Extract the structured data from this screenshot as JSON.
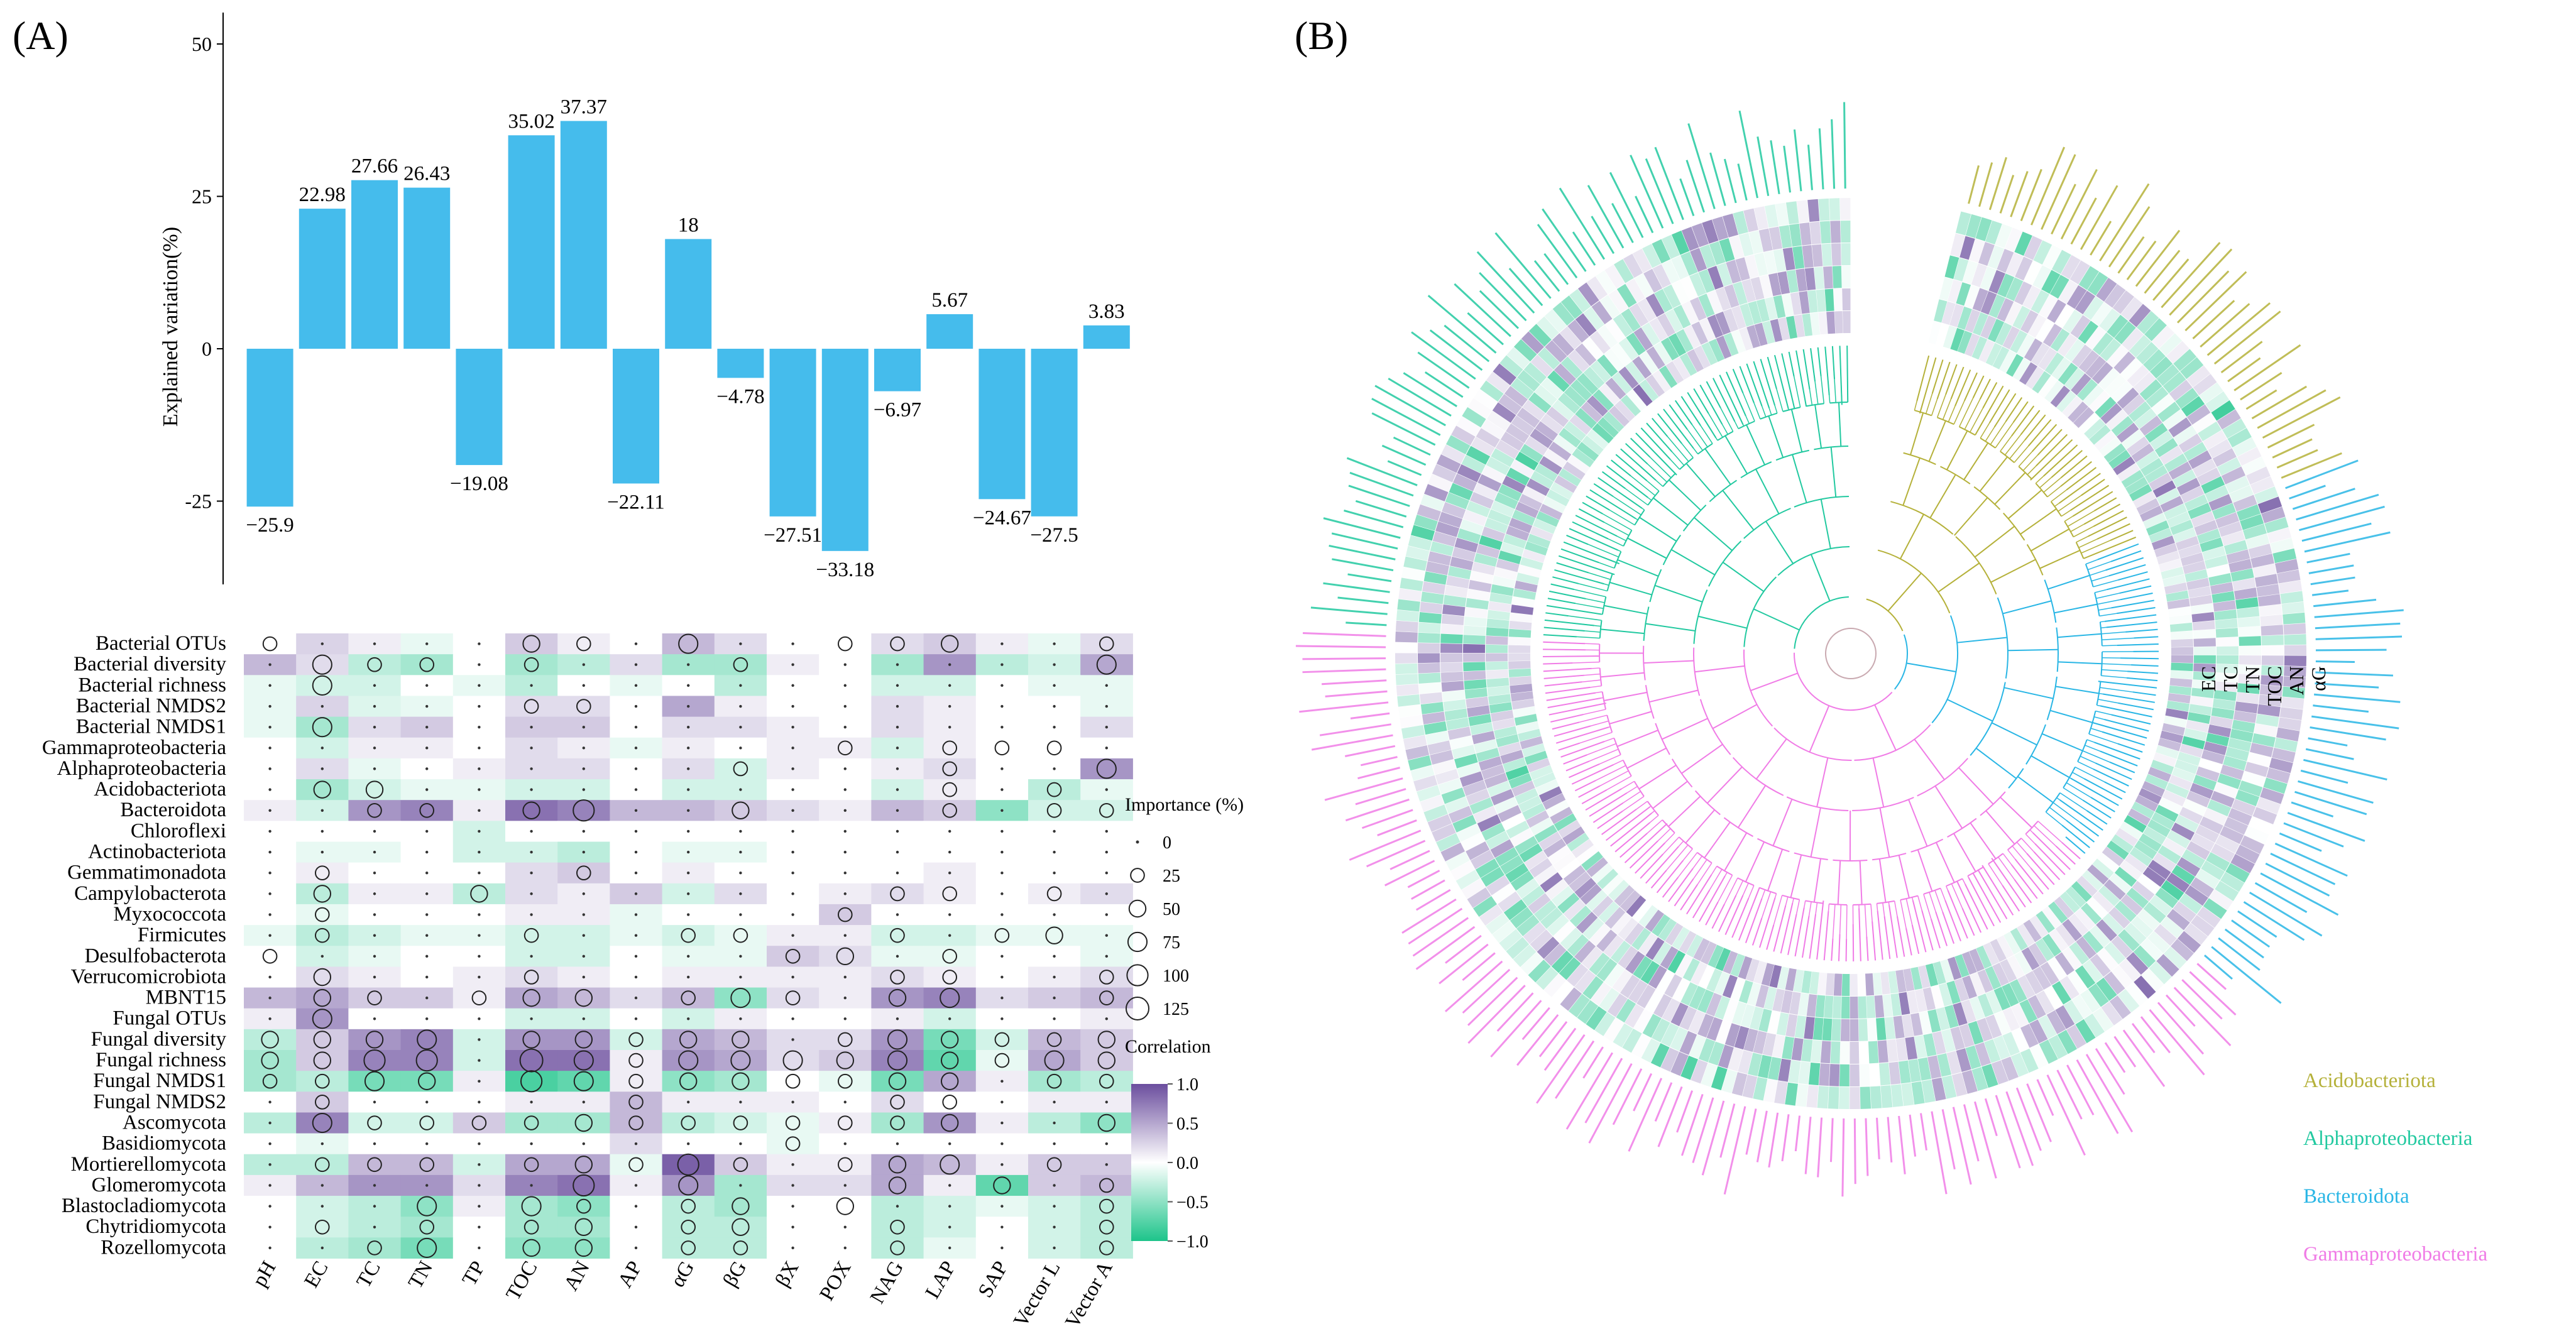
{
  "panel_a": {
    "label": "(A)",
    "bar_chart": {
      "type": "bar",
      "ylabel": "Explained variation(%)",
      "ylim": [
        -38,
        56
      ],
      "yticks": [
        -25,
        0,
        25,
        50
      ],
      "categories": [
        "pH",
        "EC",
        "TC",
        "TN",
        "TP",
        "TOC",
        "AN",
        "AP",
        "αG",
        "βG",
        "βX",
        "POX",
        "NAG",
        "LAP",
        "SAP",
        "Vector L",
        "Vector A"
      ],
      "values": [
        -25.9,
        22.98,
        27.66,
        26.43,
        -19.08,
        35.02,
        37.37,
        -22.11,
        18,
        -4.78,
        -27.51,
        -33.18,
        -6.97,
        5.67,
        -24.67,
        -27.5,
        3.83
      ],
      "value_labels": [
        "−25.9",
        "22.98",
        "27.66",
        "26.43",
        "−19.08",
        "35.02",
        "37.37",
        "−22.11",
        "18",
        "−4.78",
        "−27.51",
        "−33.18",
        "−6.97",
        "5.67",
        "−24.67",
        "−27.5",
        "3.83"
      ],
      "bar_color": "#45BCEC"
    },
    "heatmap": {
      "type": "heatmap",
      "rows": [
        "Bacterial OTUs",
        "Bacterial diversity",
        "Bacterial richness",
        "Bacterial NMDS2",
        "Bacterial NMDS1",
        "Gammaproteobacteria",
        "Alphaproteobacteria",
        "Acidobacteriota",
        "Bacteroidota",
        "Chloroflexi",
        "Actinobacteriota",
        "Gemmatimonadota",
        "Campylobacterota",
        "Myxococcota",
        "Firmicutes",
        "Desulfobacterota",
        "Verrucomicrobiota",
        "MBNT15",
        "Fungal OTUs",
        "Fungal diversity",
        "Fungal richness",
        "Fungal NMDS1",
        "Fungal NMDS2",
        "Ascomycota",
        "Basidiomycota",
        "Mortierellomycota",
        "Glomeromycota",
        "Blastocladiomycota",
        "Chytridiomycota",
        "Rozellomycota"
      ],
      "columns": [
        "pH",
        "EC",
        "TC",
        "TN",
        "TP",
        "TOC",
        "AN",
        "AP",
        "αG",
        "βG",
        "βX",
        "POX",
        "NAG",
        "LAP",
        "SAP",
        "Vector L",
        "Vector A"
      ],
      "colors": {
        "positive": "#6B4E9E",
        "zero": "#FFFFFF",
        "negative": "#1DC48A"
      },
      "correlation": [
        [
          0.0,
          0.25,
          0.1,
          -0.1,
          0.0,
          0.3,
          0.1,
          0.0,
          0.4,
          0.2,
          0.0,
          0.0,
          0.2,
          0.3,
          0.1,
          -0.1,
          0.2
        ],
        [
          0.4,
          0.2,
          -0.3,
          -0.4,
          0.0,
          -0.4,
          -0.3,
          0.2,
          -0.4,
          -0.4,
          0.1,
          0.0,
          -0.4,
          0.6,
          -0.3,
          -0.2,
          0.5
        ],
        [
          -0.1,
          -0.2,
          -0.2,
          0.0,
          -0.1,
          -0.3,
          0.0,
          -0.1,
          0.0,
          -0.3,
          0.0,
          0.0,
          -0.2,
          -0.2,
          0.0,
          -0.1,
          -0.1
        ],
        [
          -0.1,
          0.25,
          -0.15,
          -0.1,
          0.0,
          0.2,
          0.2,
          0.0,
          0.5,
          0.1,
          0.0,
          0.0,
          0.2,
          0.1,
          0.0,
          0.0,
          -0.1
        ],
        [
          -0.1,
          -0.4,
          0.2,
          0.3,
          0.0,
          0.3,
          0.3,
          0.0,
          0.2,
          0.2,
          0.1,
          0.0,
          0.2,
          0.1,
          0.0,
          0.0,
          0.2
        ],
        [
          0.0,
          -0.2,
          0.1,
          0.1,
          0.0,
          0.2,
          0.1,
          -0.1,
          0.1,
          0.0,
          0.1,
          0.1,
          -0.2,
          0.1,
          0.0,
          0.0,
          0.0
        ],
        [
          0.0,
          0.2,
          -0.1,
          0.0,
          0.1,
          0.2,
          0.2,
          0.0,
          0.2,
          -0.2,
          0.1,
          0.0,
          0.1,
          0.2,
          0.0,
          0.0,
          0.6
        ],
        [
          0.0,
          -0.4,
          -0.2,
          -0.1,
          -0.1,
          -0.2,
          -0.2,
          0.0,
          -0.2,
          -0.2,
          0.0,
          0.0,
          -0.2,
          0.1,
          0.0,
          -0.3,
          -0.1
        ],
        [
          0.1,
          -0.2,
          0.6,
          0.7,
          0.1,
          0.8,
          0.7,
          0.4,
          0.4,
          0.3,
          0.2,
          0.1,
          0.4,
          0.3,
          -0.5,
          -0.2,
          -0.2
        ],
        [
          0.0,
          0.0,
          0.0,
          0.0,
          -0.2,
          0.0,
          0.0,
          0.0,
          0.0,
          0.0,
          0.0,
          0.0,
          0.0,
          0.0,
          0.0,
          0.0,
          0.0
        ],
        [
          0.0,
          -0.1,
          -0.1,
          0.0,
          -0.2,
          -0.2,
          -0.3,
          0.0,
          -0.1,
          -0.1,
          0.0,
          0.0,
          0.0,
          0.0,
          0.0,
          0.0,
          0.0
        ],
        [
          0.0,
          0.1,
          0.0,
          0.0,
          0.0,
          0.2,
          0.3,
          0.0,
          0.1,
          0.0,
          0.0,
          0.0,
          0.0,
          0.1,
          0.0,
          0.0,
          0.0
        ],
        [
          0.0,
          -0.3,
          0.1,
          0.1,
          -0.3,
          0.2,
          0.1,
          0.3,
          -0.2,
          0.2,
          0.0,
          0.1,
          0.2,
          0.1,
          0.0,
          0.1,
          0.2
        ],
        [
          0.0,
          -0.1,
          0.0,
          0.0,
          0.0,
          0.1,
          0.1,
          -0.1,
          0.0,
          0.0,
          0.0,
          0.3,
          0.0,
          0.0,
          0.0,
          0.0,
          0.0
        ],
        [
          -0.1,
          -0.3,
          -0.2,
          -0.1,
          -0.1,
          -0.2,
          -0.2,
          -0.1,
          -0.2,
          -0.1,
          0.1,
          0.1,
          -0.2,
          -0.2,
          -0.1,
          -0.1,
          -0.1
        ],
        [
          0.0,
          -0.2,
          -0.1,
          0.0,
          0.0,
          -0.2,
          -0.2,
          0.0,
          -0.1,
          -0.1,
          0.3,
          0.2,
          -0.1,
          -0.1,
          0.0,
          0.0,
          -0.1
        ],
        [
          0.0,
          0.2,
          0.1,
          0.0,
          0.1,
          0.2,
          0.1,
          0.0,
          0.1,
          0.1,
          0.1,
          0.1,
          0.2,
          0.1,
          0.0,
          0.1,
          0.2
        ],
        [
          0.4,
          0.5,
          0.3,
          0.3,
          0.1,
          0.5,
          0.4,
          0.2,
          0.4,
          -0.5,
          0.2,
          0.1,
          0.6,
          0.7,
          0.2,
          0.3,
          0.4
        ],
        [
          0.1,
          0.6,
          0.0,
          0.0,
          0.0,
          -0.2,
          -0.2,
          0.0,
          -0.2,
          0.1,
          0.0,
          0.0,
          0.1,
          -0.2,
          0.0,
          0.0,
          0.1
        ],
        [
          -0.3,
          0.3,
          0.6,
          0.7,
          -0.2,
          0.6,
          0.6,
          -0.2,
          0.5,
          0.4,
          0.2,
          0.2,
          0.6,
          -0.6,
          -0.2,
          0.4,
          0.3
        ],
        [
          -0.4,
          0.3,
          0.7,
          0.7,
          -0.2,
          0.8,
          0.8,
          0.1,
          0.6,
          0.5,
          0.2,
          0.3,
          0.7,
          -0.7,
          -0.1,
          0.5,
          0.3
        ],
        [
          -0.4,
          -0.3,
          -0.6,
          -0.6,
          0.1,
          -0.8,
          -0.7,
          0.1,
          -0.5,
          -0.4,
          0.0,
          -0.1,
          -0.6,
          0.5,
          0.1,
          -0.4,
          -0.3
        ],
        [
          0.0,
          0.3,
          0.0,
          0.0,
          0.0,
          0.1,
          0.1,
          0.4,
          0.1,
          0.1,
          0.1,
          0.0,
          0.2,
          0.0,
          0.0,
          0.1,
          0.1
        ],
        [
          -0.3,
          0.7,
          -0.2,
          -0.2,
          0.3,
          -0.4,
          -0.4,
          0.4,
          -0.3,
          -0.2,
          -0.1,
          0.1,
          -0.4,
          0.6,
          0.1,
          -0.3,
          -0.5
        ],
        [
          0.0,
          -0.1,
          0.0,
          0.0,
          0.0,
          0.0,
          0.0,
          0.2,
          0.0,
          0.0,
          -0.1,
          0.0,
          0.0,
          0.0,
          0.0,
          0.0,
          0.0
        ],
        [
          -0.3,
          -0.3,
          0.4,
          0.4,
          -0.2,
          0.5,
          0.5,
          -0.1,
          0.9,
          0.3,
          0.1,
          0.1,
          0.5,
          0.4,
          0.1,
          0.3,
          0.3
        ],
        [
          0.1,
          0.4,
          0.6,
          0.6,
          0.2,
          0.7,
          0.8,
          0.1,
          0.6,
          -0.4,
          0.2,
          0.2,
          0.5,
          0.1,
          -0.7,
          0.3,
          0.4
        ],
        [
          0.0,
          -0.2,
          -0.3,
          -0.5,
          0.1,
          -0.4,
          -0.5,
          0.0,
          -0.3,
          -0.4,
          0.0,
          0.0,
          -0.3,
          -0.2,
          -0.1,
          -0.2,
          -0.3
        ],
        [
          0.0,
          -0.2,
          -0.3,
          -0.4,
          0.0,
          -0.4,
          -0.4,
          0.0,
          -0.3,
          -0.3,
          0.0,
          0.0,
          -0.3,
          -0.2,
          0.0,
          -0.2,
          -0.3
        ],
        [
          0.0,
          -0.3,
          -0.4,
          -0.6,
          0.0,
          -0.5,
          -0.5,
          0.0,
          -0.3,
          -0.3,
          0.0,
          0.0,
          -0.3,
          -0.1,
          0.0,
          -0.2,
          -0.3
        ]
      ],
      "importance": [
        [
          25,
          0,
          0,
          0,
          0,
          50,
          25,
          0,
          75,
          0,
          0,
          25,
          25,
          50,
          0,
          0,
          25
        ],
        [
          0,
          75,
          25,
          25,
          0,
          25,
          0,
          0,
          0,
          25,
          0,
          0,
          0,
          0,
          0,
          0,
          75
        ],
        [
          0,
          75,
          0,
          0,
          0,
          0,
          0,
          0,
          0,
          0,
          0,
          0,
          0,
          0,
          0,
          0,
          0
        ],
        [
          0,
          0,
          0,
          0,
          0,
          25,
          25,
          0,
          0,
          0,
          0,
          0,
          0,
          0,
          0,
          0,
          0
        ],
        [
          0,
          75,
          0,
          0,
          0,
          0,
          0,
          0,
          0,
          0,
          0,
          0,
          0,
          0,
          0,
          0,
          0
        ],
        [
          0,
          0,
          0,
          0,
          0,
          0,
          0,
          0,
          0,
          0,
          0,
          25,
          0,
          25,
          25,
          25,
          0
        ],
        [
          0,
          0,
          0,
          0,
          0,
          0,
          0,
          0,
          0,
          25,
          0,
          0,
          0,
          25,
          0,
          0,
          75
        ],
        [
          0,
          50,
          50,
          0,
          0,
          0,
          0,
          0,
          0,
          0,
          0,
          0,
          0,
          25,
          0,
          25,
          0
        ],
        [
          0,
          0,
          25,
          25,
          0,
          50,
          100,
          0,
          0,
          50,
          0,
          0,
          0,
          25,
          0,
          25,
          25
        ],
        [
          0,
          0,
          0,
          0,
          0,
          0,
          0,
          0,
          0,
          0,
          0,
          0,
          0,
          0,
          0,
          0,
          0
        ],
        [
          0,
          0,
          0,
          0,
          0,
          0,
          0,
          0,
          0,
          0,
          0,
          0,
          0,
          0,
          0,
          0,
          0
        ],
        [
          0,
          25,
          0,
          0,
          0,
          0,
          25,
          0,
          0,
          0,
          0,
          0,
          0,
          0,
          0,
          0,
          0
        ],
        [
          0,
          50,
          0,
          0,
          50,
          0,
          0,
          0,
          0,
          0,
          0,
          0,
          25,
          25,
          0,
          25,
          0
        ],
        [
          0,
          25,
          0,
          0,
          0,
          0,
          0,
          0,
          0,
          0,
          0,
          25,
          0,
          0,
          0,
          0,
          0
        ],
        [
          0,
          25,
          0,
          0,
          0,
          25,
          0,
          0,
          25,
          25,
          0,
          0,
          25,
          0,
          25,
          50,
          0
        ],
        [
          25,
          0,
          0,
          0,
          0,
          0,
          0,
          0,
          0,
          0,
          25,
          50,
          0,
          25,
          0,
          0,
          0
        ],
        [
          0,
          50,
          0,
          0,
          0,
          25,
          0,
          0,
          0,
          0,
          0,
          0,
          25,
          25,
          0,
          0,
          25
        ],
        [
          0,
          50,
          25,
          0,
          25,
          50,
          50,
          0,
          25,
          75,
          25,
          0,
          50,
          75,
          0,
          0,
          25
        ],
        [
          0,
          75,
          0,
          0,
          0,
          0,
          0,
          0,
          0,
          0,
          0,
          0,
          0,
          0,
          0,
          0,
          0
        ],
        [
          50,
          50,
          50,
          75,
          0,
          50,
          50,
          25,
          50,
          50,
          0,
          25,
          75,
          50,
          25,
          25,
          50
        ],
        [
          50,
          50,
          100,
          100,
          0,
          125,
          75,
          25,
          75,
          75,
          75,
          50,
          75,
          50,
          25,
          75,
          50
        ],
        [
          25,
          25,
          75,
          50,
          0,
          100,
          75,
          25,
          50,
          50,
          25,
          25,
          50,
          50,
          0,
          25,
          25
        ],
        [
          0,
          25,
          0,
          0,
          0,
          0,
          0,
          25,
          0,
          0,
          0,
          0,
          25,
          25,
          0,
          0,
          0
        ],
        [
          0,
          75,
          25,
          25,
          25,
          25,
          50,
          25,
          25,
          25,
          25,
          25,
          25,
          50,
          0,
          0,
          50
        ],
        [
          0,
          0,
          0,
          0,
          0,
          0,
          0,
          0,
          0,
          0,
          25,
          0,
          0,
          0,
          0,
          0,
          0
        ],
        [
          0,
          25,
          25,
          25,
          0,
          25,
          50,
          25,
          100,
          25,
          0,
          25,
          50,
          75,
          0,
          25,
          0
        ],
        [
          0,
          0,
          0,
          0,
          0,
          0,
          100,
          0,
          75,
          0,
          0,
          0,
          50,
          0,
          50,
          0,
          25
        ],
        [
          0,
          0,
          0,
          75,
          0,
          75,
          25,
          0,
          25,
          50,
          0,
          50,
          0,
          0,
          0,
          0,
          25
        ],
        [
          0,
          25,
          0,
          25,
          0,
          25,
          50,
          0,
          25,
          50,
          0,
          0,
          25,
          0,
          0,
          0,
          25
        ],
        [
          0,
          0,
          25,
          75,
          0,
          50,
          50,
          0,
          25,
          25,
          0,
          0,
          25,
          0,
          0,
          0,
          25
        ]
      ],
      "importance_legend": {
        "title": "Importance (%)",
        "levels": [
          0,
          25,
          50,
          75,
          100,
          125
        ],
        "labels": [
          "0",
          "25",
          "50",
          "75",
          "100",
          "125"
        ]
      },
      "correlation_legend": {
        "title": "Correlation",
        "ticks": [
          "1.0",
          "0.5",
          "0.0",
          "−0.5",
          "−1.0"
        ]
      }
    }
  },
  "panel_b": {
    "label": "(B)",
    "ring_labels": [
      "EC",
      "TC",
      "TN",
      "TOC",
      "AN",
      "αG"
    ],
    "legend": [
      {
        "name": "Acidobacteriota",
        "color": "#B5B13A"
      },
      {
        "name": "Alphaproteobacteria",
        "color": "#22C9A0"
      },
      {
        "name": "Bacteroidota",
        "color": "#29B6E5"
      },
      {
        "name": "Gammaproteobacteria",
        "color": "#F07CE6"
      }
    ],
    "clades": [
      {
        "name": "Acidobacteriota",
        "color": "#B5B13A",
        "count": 40
      },
      {
        "name": "Bacteroidota",
        "color": "#29B6E5",
        "count": 46
      },
      {
        "name": "Gammaproteobacteria",
        "color": "#F07CE6",
        "count": 104
      },
      {
        "name": "Alphaproteobacteria",
        "color": "#22C9A0",
        "count": 64
      }
    ]
  }
}
